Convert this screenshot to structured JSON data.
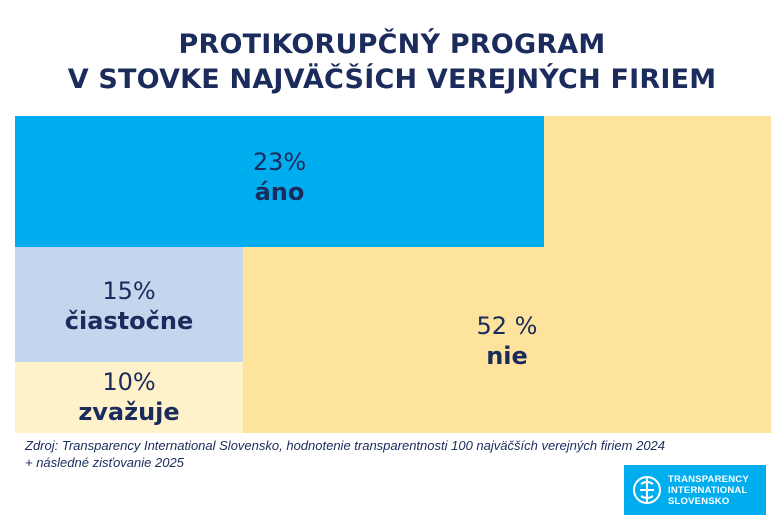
{
  "title": {
    "line1": "PROTIKORUPČNÝ PROGRAM",
    "line2": "V STOVKE NAJVÄČŠÍCH VEREJNÝCH FIRIEM"
  },
  "chart_data": {
    "type": "treemap",
    "title": "PROTIKORUPČNÝ PROGRAM V STOVKE NAJVÄČŠÍCH VEREJNÝCH FIRIEM",
    "categories": [
      "áno",
      "čiastočne",
      "zvažuje",
      "nie"
    ],
    "values": [
      23,
      15,
      10,
      52
    ],
    "unit": "%",
    "segments": [
      {
        "label": "áno",
        "value": 23,
        "value_text": "23%",
        "color": "#00aeef"
      },
      {
        "label": "čiastočne",
        "value": 15,
        "value_text": "15%",
        "color": "#c3d6ee"
      },
      {
        "label": "zvažuje",
        "value": 10,
        "value_text": "10%",
        "color": "#fff1c9"
      },
      {
        "label": "nie",
        "value": 52,
        "value_text": "52 %",
        "color": "#fde39c"
      }
    ]
  },
  "source": {
    "line1": "Zdroj: Transparency International Slovensko, hodnotenie transparentnosti 100 najväčších verejných firiem 2024",
    "line2": "+ následné zisťovanie 2025"
  },
  "logo": {
    "line1": "TRANSPARENCY",
    "line2": "INTERNATIONAL",
    "line3": "SLOVENSKO",
    "icon": "transparency-globe-icon"
  }
}
